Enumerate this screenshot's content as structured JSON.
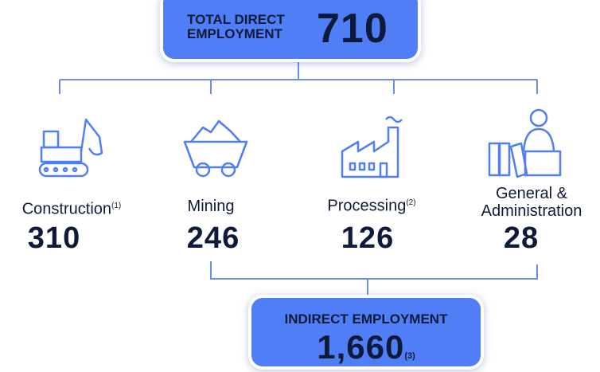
{
  "header": {
    "label": "TOTAL DIRECT EMPLOYMENT",
    "value": "710"
  },
  "groups": [
    {
      "label": "Construction",
      "note": "(1)",
      "value": "310"
    },
    {
      "label": "Mining",
      "note": null,
      "value": "246"
    },
    {
      "label": "Processing",
      "note": "(2)",
      "value": "126"
    },
    {
      "label": "General & Administration",
      "note": null,
      "value": "28"
    }
  ],
  "footer": {
    "label": "INDIRECT EMPLOYMENT",
    "value": "1,660",
    "note": "(3)"
  }
}
